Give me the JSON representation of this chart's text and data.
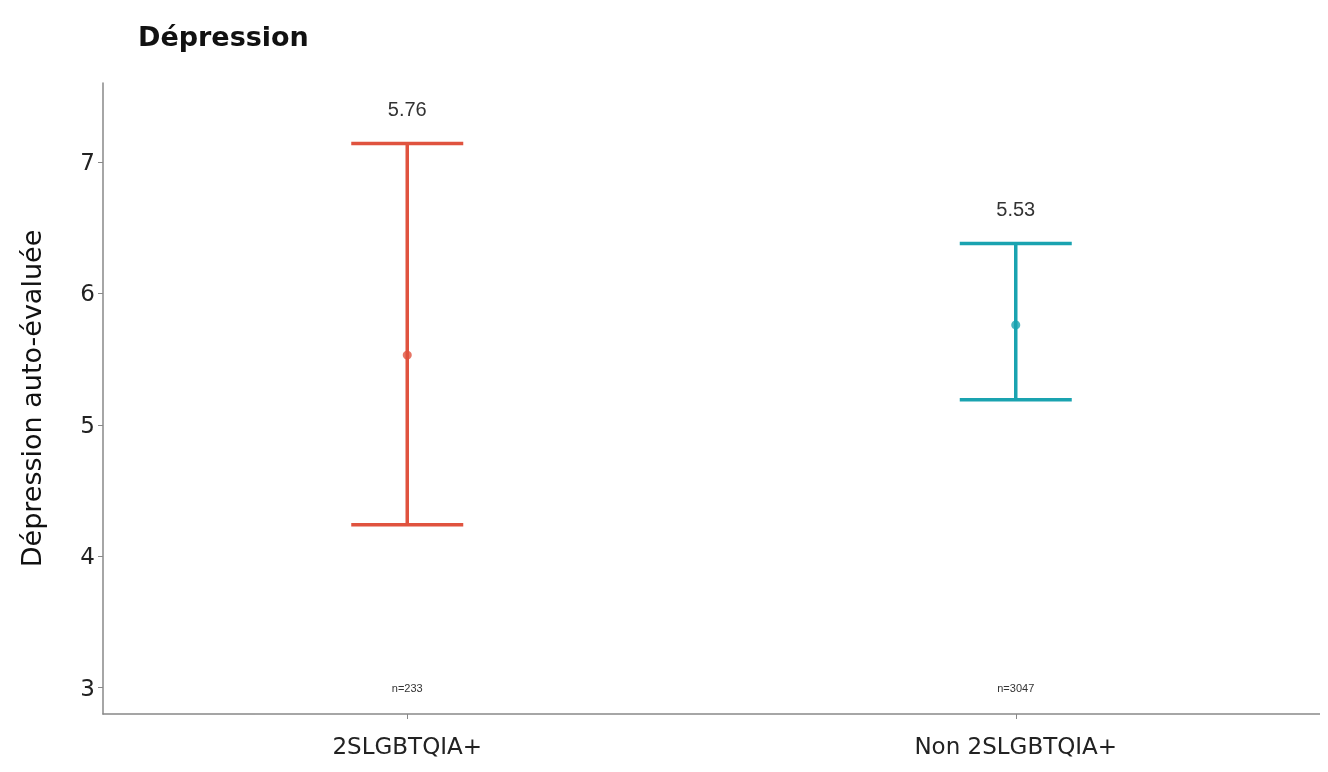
{
  "chart_data": {
    "type": "scatter",
    "title": "Dépression",
    "ylabel": "Dépression auto-évaluée",
    "categories": [
      "2SLGBTQIA+",
      "Non 2SLGBTQIA+"
    ],
    "values": [
      5.53,
      5.76
    ],
    "errors": [
      [
        4.24,
        7.14
      ],
      [
        5.19,
        6.38
      ]
    ],
    "colors": [
      "#e0533f",
      "#1aa3b0"
    ],
    "ylim": [
      2.8,
      7.6
    ],
    "yticks": [
      3,
      4,
      5,
      6,
      7
    ],
    "grid": false,
    "marker": "circle",
    "annotations": [
      "5.76",
      "5.53",
      "n=233",
      "n=3047"
    ]
  }
}
